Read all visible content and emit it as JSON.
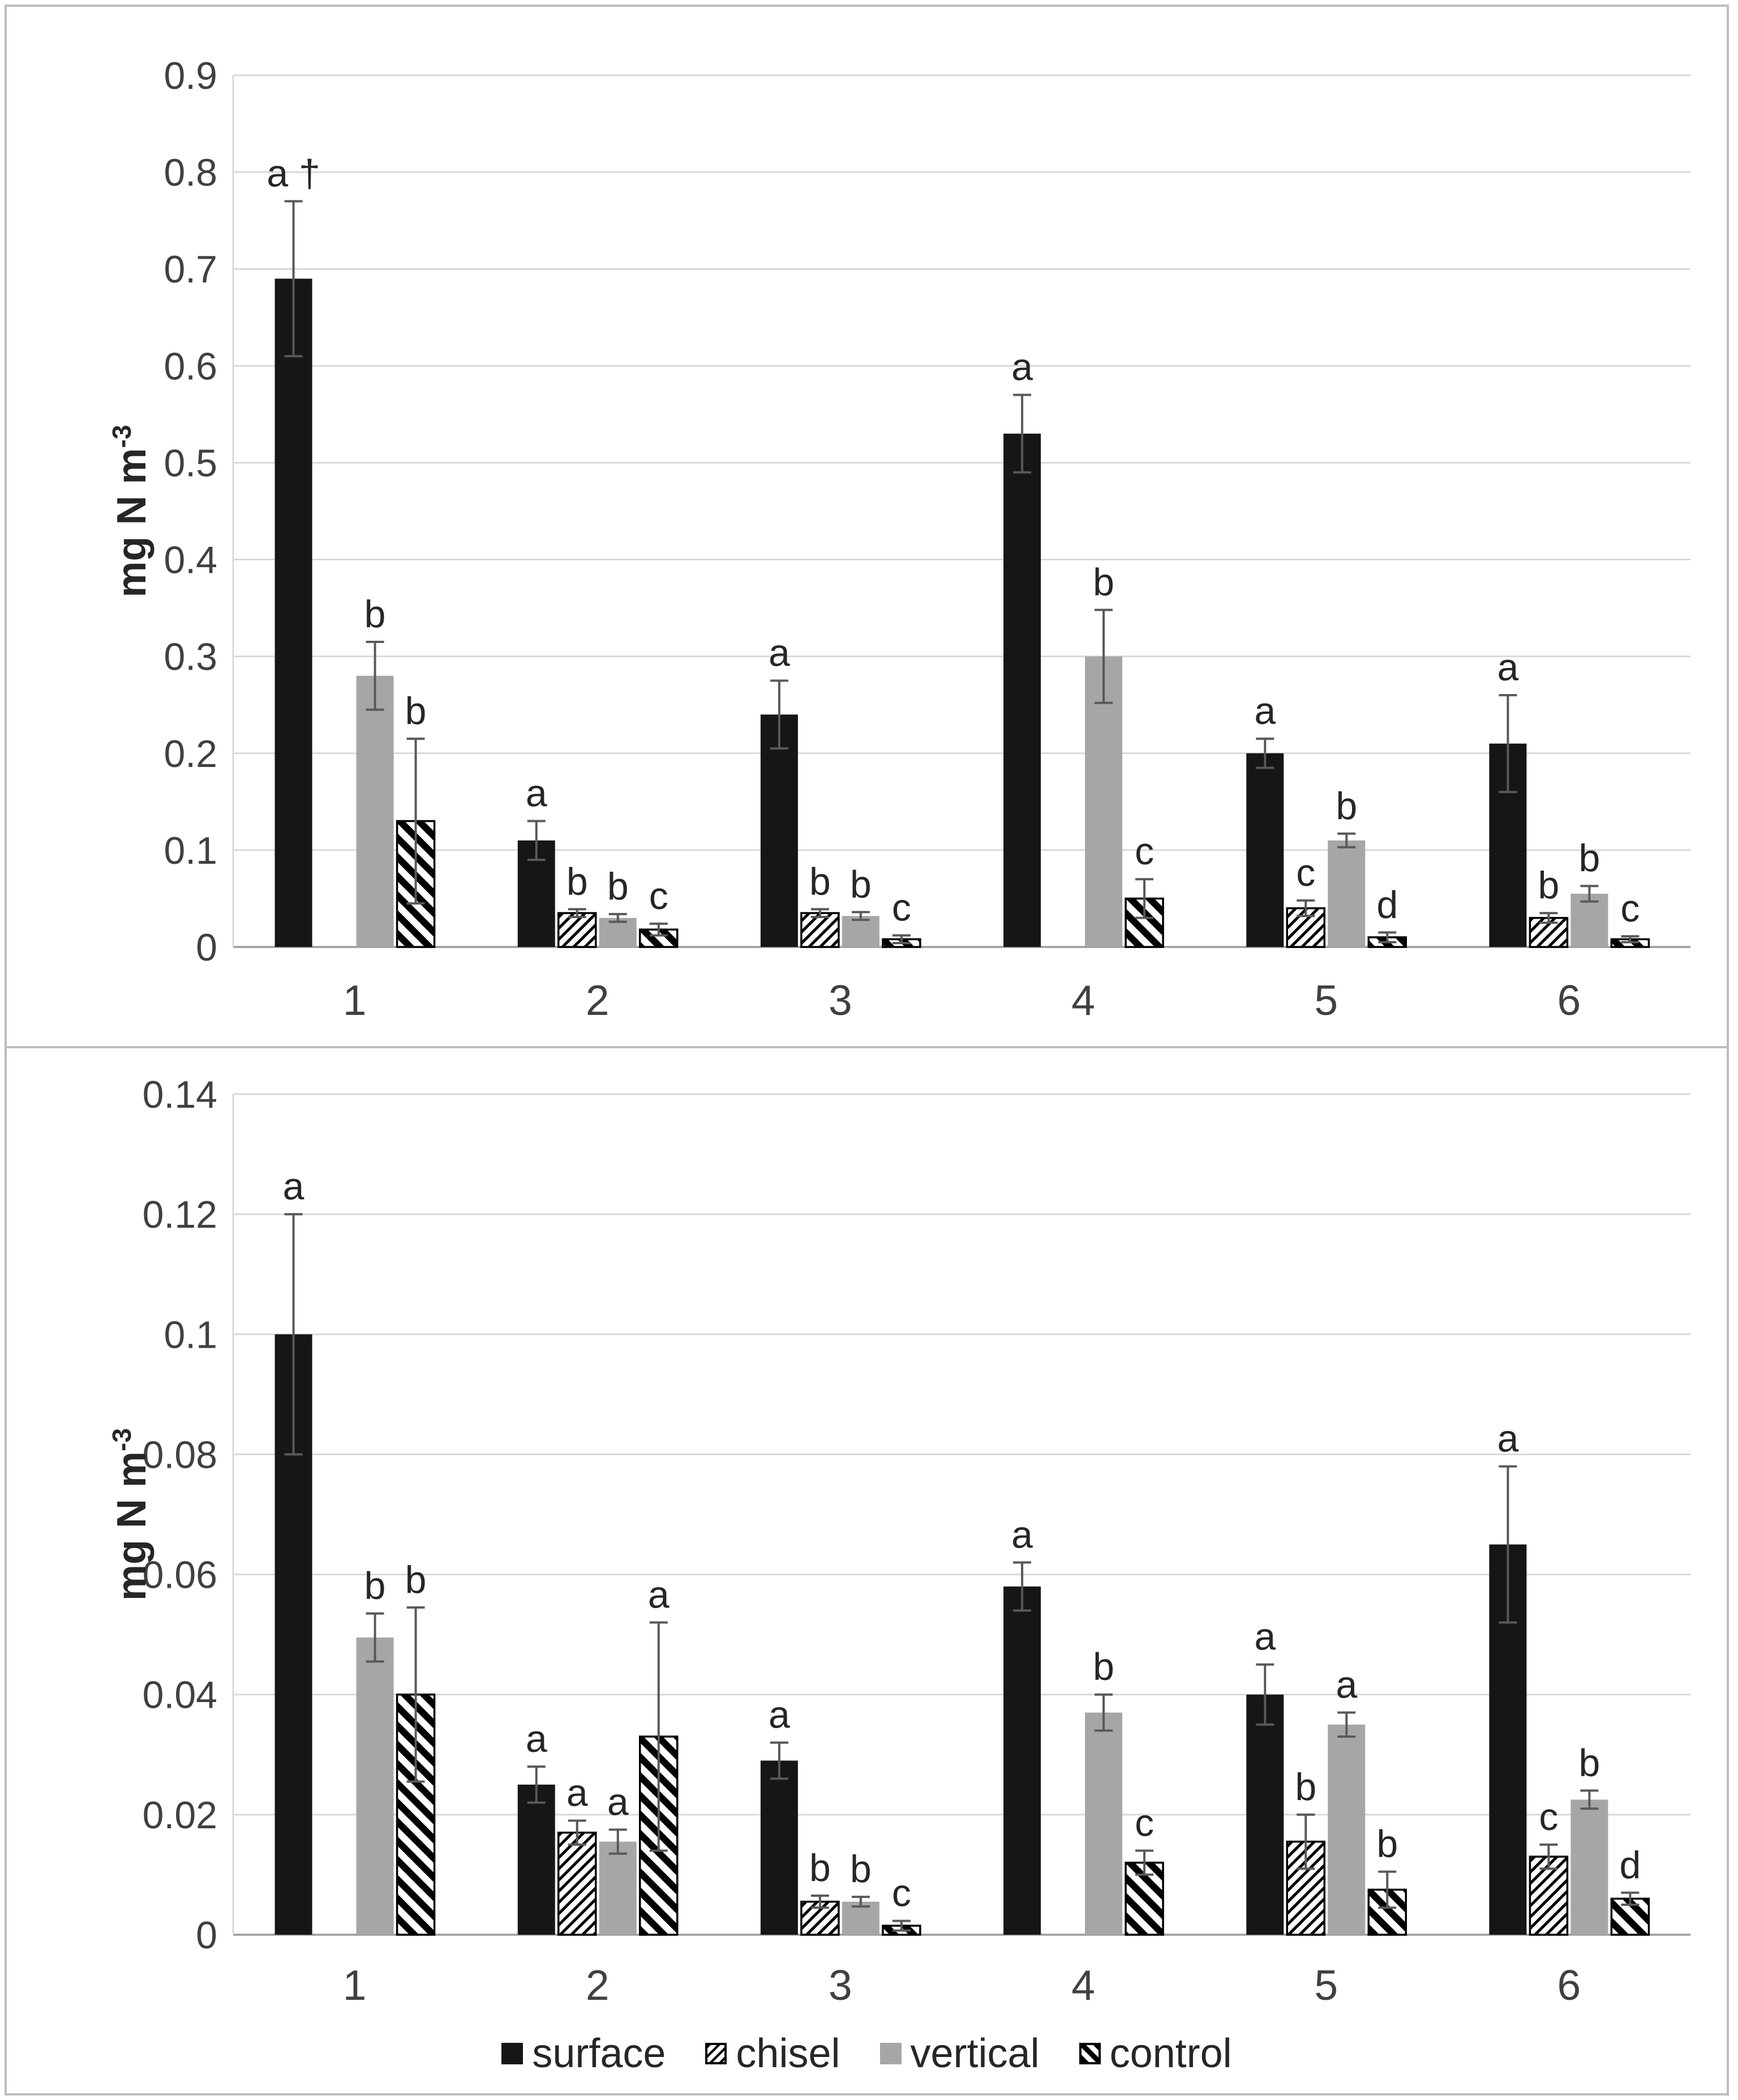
{
  "legend": {
    "items": [
      {
        "label": "surface",
        "series": "surface"
      },
      {
        "label": "chisel",
        "series": "chisel"
      },
      {
        "label": "vertical",
        "series": "vertical"
      },
      {
        "label": "control",
        "series": "control"
      }
    ]
  },
  "chart_data": [
    {
      "type": "bar",
      "title": "",
      "ylabel": "mg N m",
      "ylabel_sup": "-3",
      "xlabel": "",
      "ylim": [
        0,
        0.9
      ],
      "yticks": [
        0,
        0.1,
        0.2,
        0.3,
        0.4,
        0.5,
        0.6,
        0.7,
        0.8,
        0.9
      ],
      "ytick_labels": [
        "0",
        "0.1",
        "0.2",
        "0.3",
        "0.4",
        "0.5",
        "0.6",
        "0.7",
        "0.8",
        "0.9"
      ],
      "grid": true,
      "legend_position": "none",
      "categories": [
        "1",
        "2",
        "3",
        "4",
        "5",
        "6"
      ],
      "series": [
        {
          "name": "surface",
          "style": "solid-black",
          "values": [
            0.69,
            0.11,
            0.24,
            0.53,
            0.2,
            0.21
          ],
          "errors": [
            0.08,
            0.02,
            0.035,
            0.04,
            0.015,
            0.05
          ],
          "letters": [
            "a †",
            "a",
            "a",
            "a",
            "a",
            "a"
          ]
        },
        {
          "name": "chisel",
          "style": "hatch-forward",
          "values": [
            null,
            0.035,
            0.035,
            null,
            0.04,
            0.03
          ],
          "errors": [
            null,
            0.004,
            0.004,
            null,
            0.008,
            0.005
          ],
          "letters": [
            "",
            "b",
            "b",
            "",
            "c",
            "b"
          ]
        },
        {
          "name": "vertical",
          "style": "solid-gray",
          "values": [
            0.28,
            0.03,
            0.032,
            0.3,
            0.11,
            0.055
          ],
          "errors": [
            0.035,
            0.004,
            0.004,
            0.048,
            0.007,
            0.008
          ],
          "letters": [
            "b",
            "b",
            "b",
            "b",
            "b",
            "b"
          ]
        },
        {
          "name": "control",
          "style": "hatch-back",
          "values": [
            0.13,
            0.018,
            0.008,
            0.05,
            0.01,
            0.008
          ],
          "errors": [
            0.085,
            0.006,
            0.004,
            0.02,
            0.005,
            0.003
          ],
          "letters": [
            "b",
            "c",
            "c",
            "c",
            "d",
            "c"
          ]
        }
      ]
    },
    {
      "type": "bar",
      "title": "",
      "ylabel": "mg N m",
      "ylabel_sup": "-3",
      "xlabel": "",
      "ylim": [
        0,
        0.14
      ],
      "yticks": [
        0,
        0.02,
        0.04,
        0.06,
        0.08,
        0.1,
        0.12,
        0.14
      ],
      "ytick_labels": [
        "0",
        "0.02",
        "0.04",
        "0.06",
        "0.08",
        "0.1",
        "0.12",
        "0.14"
      ],
      "grid": true,
      "legend_position": "bottom",
      "categories": [
        "1",
        "2",
        "3",
        "4",
        "5",
        "6"
      ],
      "series": [
        {
          "name": "surface",
          "style": "solid-black",
          "values": [
            0.1,
            0.025,
            0.029,
            0.058,
            0.04,
            0.065
          ],
          "errors": [
            0.02,
            0.003,
            0.003,
            0.004,
            0.005,
            0.013
          ],
          "letters": [
            "a",
            "a",
            "a",
            "a",
            "a",
            "a"
          ]
        },
        {
          "name": "chisel",
          "style": "hatch-forward",
          "values": [
            null,
            0.017,
            0.0055,
            null,
            0.0155,
            0.013
          ],
          "errors": [
            null,
            0.002,
            0.001,
            null,
            0.0045,
            0.002
          ],
          "letters": [
            "",
            "a",
            "b",
            "",
            "b",
            "c"
          ]
        },
        {
          "name": "vertical",
          "style": "solid-gray",
          "values": [
            0.0495,
            0.0155,
            0.0055,
            0.037,
            0.035,
            0.0225
          ],
          "errors": [
            0.004,
            0.002,
            0.0008,
            0.003,
            0.002,
            0.0015
          ],
          "letters": [
            "b",
            "a",
            "b",
            "b",
            "a",
            "b"
          ]
        },
        {
          "name": "control",
          "style": "hatch-back",
          "values": [
            0.04,
            0.033,
            0.0015,
            0.012,
            0.0075,
            0.006
          ],
          "errors": [
            0.0145,
            0.019,
            0.0008,
            0.002,
            0.003,
            0.001
          ],
          "letters": [
            "b",
            "a",
            "c",
            "c",
            "b",
            "d"
          ]
        }
      ]
    }
  ]
}
